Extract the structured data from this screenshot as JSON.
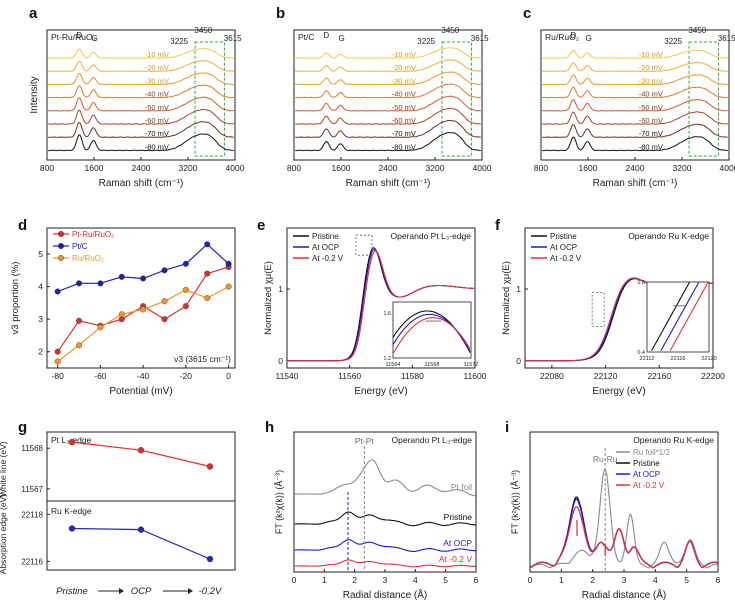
{
  "chart_data": [
    {
      "panel": "a",
      "type": "line",
      "title": "Pt-Ru/RuO₂",
      "xlabel": "Raman shift (cm⁻¹)",
      "ylabel": "Intensity",
      "xlim": [
        800,
        4000
      ],
      "xticks": [
        800,
        1600,
        2400,
        3200,
        4000
      ],
      "peak_labels": {
        "D": "D",
        "G": "G",
        "p3225": "3225",
        "p3450": "3450",
        "p3615": "3615"
      },
      "series": [
        {
          "name": "-10 mV",
          "color": "#f5c84a"
        },
        {
          "name": "-20 mV",
          "color": "#f0ad32"
        },
        {
          "name": "-30 mV",
          "color": "#eb9528"
        },
        {
          "name": "-40 mV",
          "color": "#e0782a"
        },
        {
          "name": "-50 mV",
          "color": "#cf5c2a"
        },
        {
          "name": "-60 mV",
          "color": "#a8452a"
        },
        {
          "name": "-70 mV",
          "color": "#6e3022"
        },
        {
          "name": "-80 mV",
          "color": "#111111"
        }
      ]
    },
    {
      "panel": "b",
      "type": "line",
      "title": "Pt/C",
      "xlabel": "Raman shift (cm⁻¹)",
      "ylabel": "",
      "xlim": [
        800,
        4000
      ],
      "xticks": [
        800,
        1600,
        2400,
        3200,
        4000
      ],
      "peak_labels": {
        "D": "D",
        "G": "G",
        "p3225": "3225",
        "p3450": "3450",
        "p3615": "3615"
      },
      "series": [
        {
          "name": "-10 mV"
        },
        {
          "name": "-20 mV"
        },
        {
          "name": "-30 mV"
        },
        {
          "name": "-40 mV"
        },
        {
          "name": "-50 mV"
        },
        {
          "name": "-60 mV"
        },
        {
          "name": "-70 mV"
        },
        {
          "name": "-80 mV"
        }
      ]
    },
    {
      "panel": "c",
      "type": "line",
      "title": "Ru/RuO₂",
      "xlabel": "Raman shift (cm⁻¹)",
      "ylabel": "",
      "xlim": [
        800,
        4000
      ],
      "xticks": [
        800,
        1600,
        2400,
        3200,
        4000
      ],
      "peak_labels": {
        "D": "D",
        "G": "G",
        "p3225": "3225",
        "p3450": "3450",
        "p3615": "3615"
      },
      "series": [
        {
          "name": "-10 mV"
        },
        {
          "name": "-20 mV"
        },
        {
          "name": "-30 mV"
        },
        {
          "name": "-40 mV"
        },
        {
          "name": "-50 mV"
        },
        {
          "name": "-60 mV"
        },
        {
          "name": "-70 mV"
        },
        {
          "name": "-80 mV"
        }
      ]
    },
    {
      "panel": "d",
      "type": "line",
      "xlabel": "Potential (mV)",
      "ylabel": "v3 proportion (%)",
      "xlim": [
        -85,
        3
      ],
      "ylim": [
        1.5,
        5.8
      ],
      "xticks": [
        -80,
        -60,
        -40,
        -20,
        0
      ],
      "yticks": [
        2,
        3,
        4,
        5
      ],
      "annotation": "v3 (3615 cm⁻¹)",
      "x": [
        -80,
        -70,
        -60,
        -50,
        -40,
        -30,
        -20,
        -10,
        0
      ],
      "series": [
        {
          "name": "Pt-Ru/RuO₂",
          "color": "#d93030",
          "values": [
            2.0,
            2.95,
            2.8,
            3.0,
            3.4,
            3.0,
            3.4,
            4.4,
            4.6
          ]
        },
        {
          "name": "Pt/C",
          "color": "#2020b0",
          "values": [
            3.85,
            4.1,
            4.1,
            4.3,
            4.25,
            4.5,
            4.7,
            5.3,
            4.7
          ]
        },
        {
          "name": "Ru/RuO₂",
          "color": "#f09628",
          "values": [
            1.7,
            2.2,
            2.75,
            3.15,
            3.3,
            3.55,
            3.9,
            3.65,
            4.0
          ]
        }
      ]
    },
    {
      "panel": "e",
      "type": "line",
      "title": "Operando Pt L₃-edge",
      "xlabel": "Energy (eV)",
      "ylabel": "Normalized χμ(E)",
      "xlim": [
        11540,
        11600
      ],
      "ylim": [
        -0.1,
        1.85
      ],
      "xticks": [
        11540,
        11560,
        11580,
        11600
      ],
      "yticks": [
        0,
        1
      ],
      "series": [
        {
          "name": "Pristine",
          "color": "#111111"
        },
        {
          "name": "At OCP",
          "color": "#1a1ad0"
        },
        {
          "name": "At -0.2 V",
          "color": "#e03040"
        }
      ],
      "inset": {
        "xlim": [
          11564,
          11572
        ],
        "ylim": [
          1.2,
          1.7
        ],
        "xticks": [
          11564,
          11568,
          11572
        ],
        "yticks": [
          1.2,
          1.6
        ]
      }
    },
    {
      "panel": "f",
      "type": "line",
      "title": "Operando Ru K-edge",
      "xlabel": "Energy (eV)",
      "ylabel": "Normalized χμ(E)",
      "xlim": [
        22060,
        22200
      ],
      "ylim": [
        -0.1,
        1.85
      ],
      "xticks": [
        22080,
        22120,
        22160,
        22200
      ],
      "yticks": [
        0,
        1
      ],
      "series": [
        {
          "name": "Pristine",
          "color": "#111111"
        },
        {
          "name": "At OCP",
          "color": "#1a1ad0"
        },
        {
          "name": "At -0.2 V",
          "color": "#e03040"
        }
      ],
      "inset": {
        "xlim": [
          22112,
          22120
        ],
        "ylim": [
          0.4,
          0.8
        ],
        "xticks": [
          22112,
          22116,
          22120
        ],
        "yticks": [
          0.4,
          0.8
        ]
      }
    },
    {
      "panel": "g",
      "type": "scatter",
      "ylabel_top": "White line (eV)",
      "ylabel_bottom": "Absorption edge (eV)",
      "categories": [
        "Pristine",
        "OCP",
        "-0.2V"
      ],
      "top": {
        "label": "Pt L₃-edge",
        "color": "#d93030",
        "ylim": [
          11566.8,
          11568.3
        ],
        "yticks": [
          11567,
          11568
        ],
        "values": [
          11568.15,
          11567.95,
          11567.55
        ]
      },
      "bottom": {
        "label": "Ru K-edge",
        "color": "#2828c0",
        "ylim": [
          22115.8,
          22118.4
        ],
        "yticks": [
          22116,
          22118
        ],
        "values": [
          22117.4,
          22117.35,
          22116.1
        ]
      }
    },
    {
      "panel": "h",
      "type": "line",
      "title": "Operando Pt L₃-edge",
      "xlabel": "Radial distance (Å)",
      "ylabel": "FT (k²χ(k)) (Å⁻³)",
      "xlim": [
        0,
        6
      ],
      "xticks": [
        0,
        1,
        2,
        3,
        4,
        5,
        6
      ],
      "peak_label": "Pt-Pt",
      "series": [
        {
          "name": "Pt foil",
          "color": "#8a8a8a"
        },
        {
          "name": "Pristine",
          "color": "#111111"
        },
        {
          "name": "At OCP",
          "color": "#1a1ad0"
        },
        {
          "name": "At -0.2 V",
          "color": "#e03040"
        }
      ]
    },
    {
      "panel": "i",
      "type": "line",
      "title": "Operando Ru K-edge",
      "xlabel": "Radial distance (Å)",
      "ylabel": "FT (k²χ(k)) (Å⁻³)",
      "xlim": [
        0,
        6
      ],
      "xticks": [
        0,
        1,
        2,
        3,
        4,
        5,
        6
      ],
      "peak_label": "Ru-Ru",
      "series": [
        {
          "name": "Ru foil*1/2",
          "color": "#8a8a8a"
        },
        {
          "name": "Pristine",
          "color": "#111111"
        },
        {
          "name": "At OCP",
          "color": "#1a1ad0"
        },
        {
          "name": "At -0.2 V",
          "color": "#e03040"
        }
      ]
    }
  ]
}
